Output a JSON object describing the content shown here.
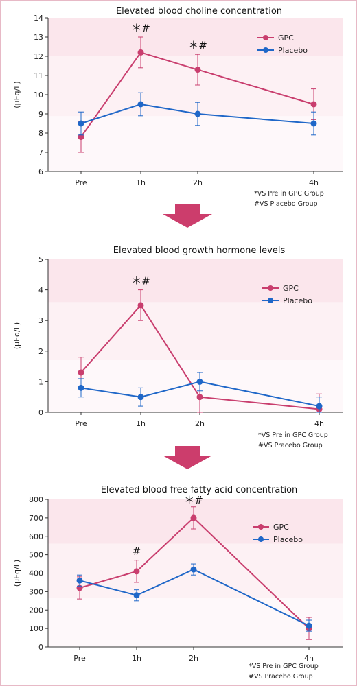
{
  "colors": {
    "gpc": "#c93e6e",
    "placebo": "#1f67c8",
    "arrow": "#cc3d6c",
    "band_top": "#fbe6ec",
    "band_mid": "#fdf1f4",
    "band_low": "#fef8fa"
  },
  "arrow_icon": "down-arrow-icon",
  "chart_data": [
    {
      "type": "line",
      "title": "Elevated blood choline concentration",
      "ylabel": "(μEq/L)",
      "xlabel": "",
      "ylim": [
        6,
        14
      ],
      "yticks": [
        6,
        7,
        8,
        9,
        10,
        11,
        12,
        13,
        14
      ],
      "categories": [
        "Pre",
        "1h",
        "2h",
        "4h"
      ],
      "x": [
        0,
        1,
        2,
        4
      ],
      "series": [
        {
          "name": "GPC",
          "values": [
            7.8,
            12.2,
            11.3,
            9.5
          ],
          "err": [
            0.8,
            0.8,
            0.8,
            0.8
          ]
        },
        {
          "name": "Placebo",
          "values": [
            8.5,
            9.5,
            9.0,
            8.5
          ],
          "err": [
            0.6,
            0.6,
            0.6,
            0.6
          ]
        }
      ],
      "annotations": [
        {
          "x": 1,
          "text": "＊#"
        },
        {
          "x": 2,
          "text": "＊#"
        }
      ],
      "notes": [
        "*VS Pre  in GPC Group",
        "#VS Placebo Group"
      ]
    },
    {
      "type": "line",
      "title": "Elevated blood growth hormone levels",
      "ylabel": "(μEq/L)",
      "xlabel": "",
      "ylim": [
        0,
        5
      ],
      "yticks": [
        0,
        1,
        2,
        3,
        4,
        5
      ],
      "categories": [
        "Pre",
        "1h",
        "2h",
        "4h"
      ],
      "x": [
        0,
        1,
        2,
        4
      ],
      "series": [
        {
          "name": "GPC",
          "values": [
            1.3,
            3.5,
            0.5,
            0.1
          ],
          "err": [
            0.5,
            0.5,
            0.5,
            0.5
          ]
        },
        {
          "name": "Placebo",
          "values": [
            0.8,
            0.5,
            1.0,
            0.2
          ],
          "err": [
            0.3,
            0.3,
            0.3,
            0.3
          ]
        }
      ],
      "annotations": [
        {
          "x": 1,
          "text": "＊#"
        }
      ],
      "notes": [
        "*VS Pre  in GPC Group",
        "#VS Pracebo Group"
      ]
    },
    {
      "type": "line",
      "title": "Elevated blood free fatty acid concentration",
      "ylabel": "(μEq/L)",
      "xlabel": "",
      "ylim": [
        0,
        800
      ],
      "yticks": [
        0,
        100,
        200,
        300,
        400,
        500,
        600,
        700,
        800
      ],
      "categories": [
        "Pre",
        "1h",
        "2h",
        "4h"
      ],
      "x": [
        0,
        1,
        2,
        4
      ],
      "series": [
        {
          "name": "GPC",
          "values": [
            320,
            410,
            700,
            100
          ],
          "err": [
            60,
            60,
            60,
            60
          ]
        },
        {
          "name": "Placebo",
          "values": [
            360,
            280,
            420,
            115
          ],
          "err": [
            30,
            30,
            30,
            30
          ]
        }
      ],
      "annotations": [
        {
          "x": 1,
          "text": "#"
        },
        {
          "x": 2,
          "text": "＊#"
        }
      ],
      "notes": [
        "*VS Pre  in GPC Group",
        "#VS Pracebo Group"
      ]
    }
  ]
}
